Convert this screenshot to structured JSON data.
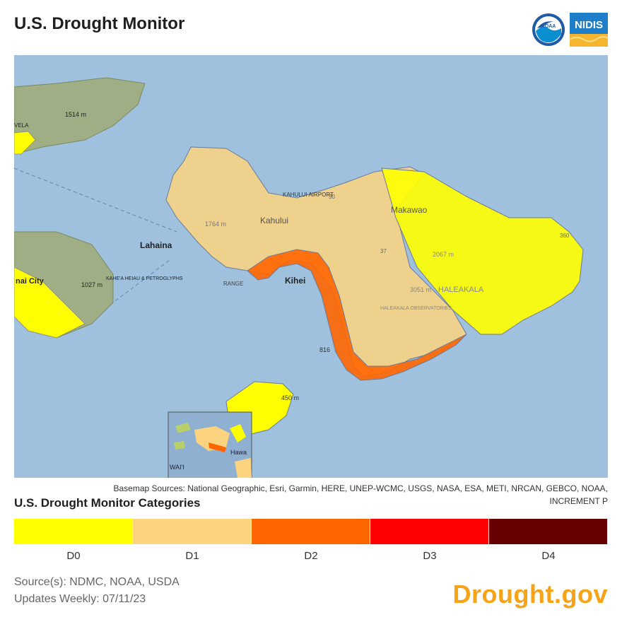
{
  "header": {
    "title": "U.S. Drought Monitor",
    "logos": [
      {
        "name": "noaa-logo",
        "text": "NOAA"
      },
      {
        "name": "nidis-logo",
        "text": "NIDIS"
      }
    ]
  },
  "map": {
    "labels": {
      "lahaina": "Lahaina",
      "kahului": "Kahului",
      "kahului_airport": "KAHULUI AIRPORT",
      "makawao": "Makawao",
      "kihei": "Kihei",
      "haleakala": "HALEAKALA",
      "haleakala_obs": "HALEAKALA OBSERVATORIES",
      "kihei_range": "RANGE",
      "elev_1514": "1514 m",
      "elev_1764": "1764 m",
      "elev_1027": "1027 m",
      "elev_2067": "2067 m",
      "elev_3051": "3051 m",
      "elev_816": "816",
      "elev_450": "450 m",
      "petroglyphs": "KAHE'A HEIAU & PETROGLYPHS",
      "city": "nai City",
      "road_37": "37",
      "road_30": "30",
      "road_360": "360",
      "kalaupapa": "VELA",
      "inset_hawaii": "Hawa",
      "inset_kauai": "WAI'I"
    },
    "colors": {
      "water": "#9fc1de",
      "land": "#b9bfa4",
      "d0": "#ffff00",
      "d1": "#fcd37f",
      "d2": "#ff6600"
    }
  },
  "attribution": {
    "line1": "Basemap Sources: National Geographic, Esri, Garmin, HERE, UNEP-WCMC, USGS, NASA, ESA, METI, NRCAN, GEBCO, NOAA,",
    "line2": "INCREMENT P"
  },
  "legend": {
    "title": "U.S. Drought Monitor Categories",
    "items": [
      {
        "label": "D0",
        "color": "#ffff00"
      },
      {
        "label": "D1",
        "color": "#fcd37f"
      },
      {
        "label": "D2",
        "color": "#ff6600"
      },
      {
        "label": "D3",
        "color": "#ff0000"
      },
      {
        "label": "D4",
        "color": "#660000"
      }
    ]
  },
  "footer": {
    "sources": "Source(s): NDMC, NOAA, USDA",
    "updates": "Updates Weekly: 07/11/23",
    "brand": "Drought.gov"
  }
}
